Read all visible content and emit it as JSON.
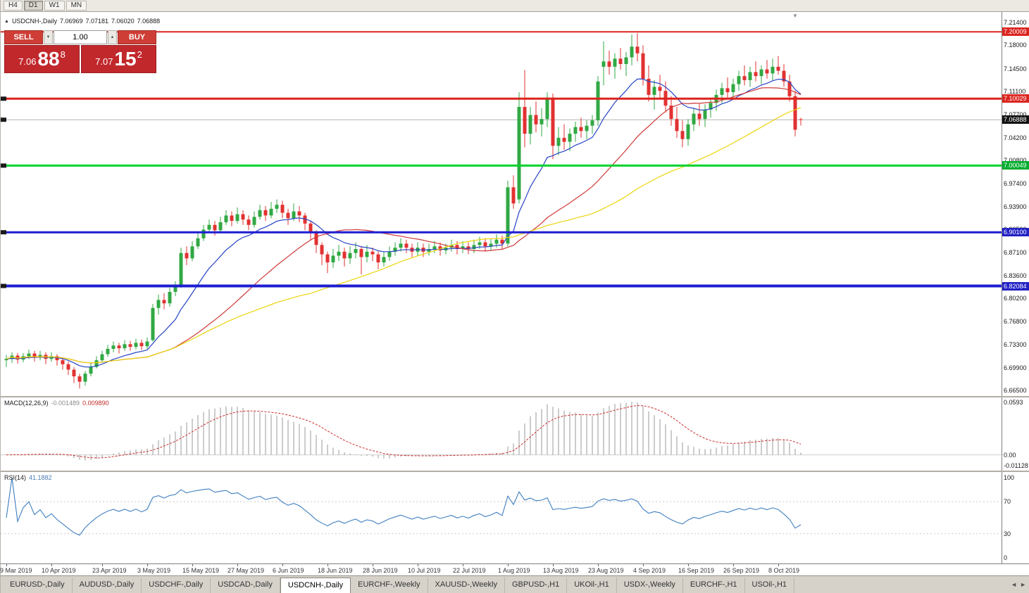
{
  "toolbar": {
    "timeframes": [
      "H4",
      "D1",
      "W1",
      "MN"
    ],
    "active": "D1"
  },
  "title": {
    "symbol": "USDCNH-,Daily",
    "open": "7.06969",
    "high": "7.07181",
    "low": "7.06020",
    "close": "7.06888"
  },
  "icons": {
    "panel_toggle": "▲",
    "shift_marker": "▼",
    "spin_down": "▼",
    "spin_up": "▲",
    "tab_left": "◄",
    "tab_right": "►"
  },
  "one_click": {
    "sell_label": "SELL",
    "buy_label": "BUY",
    "volume": "1.00",
    "bid": {
      "prefix": "7.06",
      "big": "88",
      "sup": "8"
    },
    "ask": {
      "prefix": "7.07",
      "big": "15",
      "sup": "2"
    }
  },
  "price_scale": {
    "ticks": [
      {
        "label": "7.21400",
        "value": 7.214
      },
      {
        "label": "7.18000",
        "value": 7.18
      },
      {
        "label": "7.14500",
        "value": 7.145
      },
      {
        "label": "7.11100",
        "value": 7.111
      },
      {
        "label": "7.07700",
        "value": 7.077
      },
      {
        "label": "7.04200",
        "value": 7.042
      },
      {
        "label": "7.00800",
        "value": 7.008
      },
      {
        "label": "6.97400",
        "value": 6.974
      },
      {
        "label": "6.93900",
        "value": 6.939
      },
      {
        "label": "6.90500",
        "value": 6.905
      },
      {
        "label": "6.87100",
        "value": 6.871
      },
      {
        "label": "6.83600",
        "value": 6.836
      },
      {
        "label": "6.80200",
        "value": 6.802
      },
      {
        "label": "6.76800",
        "value": 6.768
      },
      {
        "label": "6.73300",
        "value": 6.733
      },
      {
        "label": "6.69900",
        "value": 6.699
      },
      {
        "label": "6.66500",
        "value": 6.665
      }
    ],
    "badges": [
      {
        "label": "7.20009",
        "value": 7.20009,
        "bg": "#dc241e"
      },
      {
        "label": "7.10029",
        "value": 7.10029,
        "bg": "#dc241e"
      },
      {
        "label": "7.06888",
        "value": 7.06888,
        "bg": "#111111"
      },
      {
        "label": "7.00049",
        "value": 7.00049,
        "bg": "#00ad2e"
      },
      {
        "label": "6.90100",
        "value": 6.901,
        "bg": "#2121c4"
      },
      {
        "label": "6.82084",
        "value": 6.82084,
        "bg": "#2121c4"
      }
    ]
  },
  "time_axis": {
    "labels": [
      {
        "index": 0,
        "text": "29 Mar 2019"
      },
      {
        "index": 8,
        "text": "10 Apr 2019"
      },
      {
        "index": 17,
        "text": "23 Apr 2019"
      },
      {
        "index": 25,
        "text": "3 May 2019"
      },
      {
        "index": 33,
        "text": "15 May 2019"
      },
      {
        "index": 41,
        "text": "27 May 2019"
      },
      {
        "index": 49,
        "text": "6 Jun 2019"
      },
      {
        "index": 57,
        "text": "18 Jun 2019"
      },
      {
        "index": 65,
        "text": "28 Jun 2019"
      },
      {
        "index": 73,
        "text": "10 Jul 2019"
      },
      {
        "index": 81,
        "text": "22 Jul 2019"
      },
      {
        "index": 89,
        "text": "1 Aug 2019"
      },
      {
        "index": 97,
        "text": "13 Aug 2019"
      },
      {
        "index": 105,
        "text": "23 Aug 2019"
      },
      {
        "index": 113,
        "text": "4 Sep 2019"
      },
      {
        "index": 121,
        "text": "16 Sep 2019"
      },
      {
        "index": 129,
        "text": "26 Sep 2019"
      },
      {
        "index": 137,
        "text": "8 Oct 2019"
      }
    ]
  },
  "tabs": [
    {
      "label": "EURUSD-,Daily"
    },
    {
      "label": "AUDUSD-,Daily"
    },
    {
      "label": "USDCHF-,Daily"
    },
    {
      "label": "USDCAD-,Daily"
    },
    {
      "label": "USDCNH-,Daily",
      "active": true
    },
    {
      "label": "EURCHF-,Weekly"
    },
    {
      "label": "XAUUSD-,Weekly"
    },
    {
      "label": "GBPUSD-,H1"
    },
    {
      "label": "UKOil-,H1"
    },
    {
      "label": "USDX-,Weekly"
    },
    {
      "label": "EURCHF-,H1"
    },
    {
      "label": "USOil-,H1"
    }
  ],
  "chart_data": {
    "type": "candlestick",
    "symbol": "USDCNH",
    "timeframe": "Daily",
    "ylim": [
      6.665,
      7.214
    ],
    "up_color": "#31a843",
    "down_color": "#e23131",
    "candles": [
      [
        6.71,
        6.718,
        6.7,
        6.712
      ],
      [
        6.712,
        6.722,
        6.706,
        6.717
      ],
      [
        6.717,
        6.721,
        6.705,
        6.711
      ],
      [
        6.711,
        6.721,
        6.707,
        6.716
      ],
      [
        6.716,
        6.726,
        6.712,
        6.72
      ],
      [
        6.72,
        6.724,
        6.708,
        6.714
      ],
      [
        6.714,
        6.724,
        6.71,
        6.718
      ],
      [
        6.718,
        6.722,
        6.704,
        6.712
      ],
      [
        6.712,
        6.722,
        6.708,
        6.716
      ],
      [
        6.716,
        6.719,
        6.702,
        6.71
      ],
      [
        6.71,
        6.714,
        6.696,
        6.704
      ],
      [
        6.704,
        6.708,
        6.688,
        6.696
      ],
      [
        6.696,
        6.7,
        6.676,
        6.686
      ],
      [
        6.686,
        6.69,
        6.668,
        6.678
      ],
      [
        6.678,
        6.694,
        6.672,
        6.69
      ],
      [
        6.69,
        6.706,
        6.686,
        6.7
      ],
      [
        6.7,
        6.716,
        6.698,
        6.71
      ],
      [
        6.71,
        6.724,
        6.706,
        6.719
      ],
      [
        6.719,
        6.733,
        6.715,
        6.727
      ],
      [
        6.727,
        6.738,
        6.722,
        6.732
      ],
      [
        6.732,
        6.736,
        6.72,
        6.728
      ],
      [
        6.728,
        6.74,
        6.724,
        6.734
      ],
      [
        6.734,
        6.739,
        6.724,
        6.73
      ],
      [
        6.73,
        6.742,
        6.726,
        6.736
      ],
      [
        6.736,
        6.741,
        6.725,
        6.731
      ],
      [
        6.731,
        6.744,
        6.727,
        6.738
      ],
      [
        6.74,
        6.794,
        6.738,
        6.788
      ],
      [
        6.788,
        6.808,
        6.778,
        6.8
      ],
      [
        6.8,
        6.81,
        6.786,
        6.795
      ],
      [
        6.795,
        6.818,
        6.79,
        6.812
      ],
      [
        6.812,
        6.828,
        6.806,
        6.82
      ],
      [
        6.82,
        6.878,
        6.818,
        6.87
      ],
      [
        6.87,
        6.88,
        6.852,
        6.862
      ],
      [
        6.862,
        6.888,
        6.858,
        6.88
      ],
      [
        6.88,
        6.9,
        6.876,
        6.892
      ],
      [
        6.892,
        6.912,
        6.888,
        6.905
      ],
      [
        6.905,
        6.92,
        6.9,
        6.912
      ],
      [
        6.912,
        6.918,
        6.896,
        6.904
      ],
      [
        6.904,
        6.924,
        6.9,
        6.916
      ],
      [
        6.916,
        6.934,
        6.912,
        6.926
      ],
      [
        6.926,
        6.932,
        6.91,
        6.918
      ],
      [
        6.918,
        6.938,
        6.914,
        6.928
      ],
      [
        6.928,
        6.934,
        6.912,
        6.92
      ],
      [
        6.92,
        6.926,
        6.904,
        6.912
      ],
      [
        6.912,
        6.932,
        6.908,
        6.924
      ],
      [
        6.924,
        6.942,
        6.92,
        6.934
      ],
      [
        6.934,
        6.94,
        6.918,
        6.926
      ],
      [
        6.926,
        6.946,
        6.922,
        6.936
      ],
      [
        6.936,
        6.95,
        6.93,
        6.942
      ],
      [
        6.942,
        6.948,
        6.922,
        6.93
      ],
      [
        6.93,
        6.936,
        6.912,
        6.922
      ],
      [
        6.922,
        6.944,
        6.918,
        6.932
      ],
      [
        6.932,
        6.94,
        6.916,
        6.926
      ],
      [
        6.926,
        6.93,
        6.904,
        6.914
      ],
      [
        6.914,
        6.918,
        6.89,
        6.9
      ],
      [
        6.9,
        6.904,
        6.87,
        6.882
      ],
      [
        6.882,
        6.886,
        6.852,
        6.868
      ],
      [
        6.868,
        6.872,
        6.84,
        6.856
      ],
      [
        6.856,
        6.876,
        6.848,
        6.866
      ],
      [
        6.866,
        6.882,
        6.858,
        6.872
      ],
      [
        6.872,
        6.878,
        6.85,
        6.862
      ],
      [
        6.862,
        6.88,
        6.854,
        6.87
      ],
      [
        6.87,
        6.886,
        6.862,
        6.876
      ],
      [
        6.876,
        6.88,
        6.838,
        6.864
      ],
      [
        6.864,
        6.882,
        6.856,
        6.872
      ],
      [
        6.872,
        6.878,
        6.858,
        6.868
      ],
      [
        6.868,
        6.872,
        6.846,
        6.856
      ],
      [
        6.856,
        6.872,
        6.85,
        6.864
      ],
      [
        6.864,
        6.88,
        6.858,
        6.872
      ],
      [
        6.872,
        6.886,
        6.866,
        6.878
      ],
      [
        6.878,
        6.892,
        6.872,
        6.884
      ],
      [
        6.884,
        6.89,
        6.87,
        6.878
      ],
      [
        6.878,
        6.884,
        6.864,
        6.872
      ],
      [
        6.872,
        6.886,
        6.866,
        6.878
      ],
      [
        6.878,
        6.884,
        6.864,
        6.872
      ],
      [
        6.872,
        6.884,
        6.866,
        6.876
      ],
      [
        6.876,
        6.888,
        6.87,
        6.88
      ],
      [
        6.88,
        6.886,
        6.866,
        6.874
      ],
      [
        6.874,
        6.884,
        6.868,
        6.878
      ],
      [
        6.878,
        6.89,
        6.872,
        6.882
      ],
      [
        6.882,
        6.888,
        6.868,
        6.876
      ],
      [
        6.876,
        6.888,
        6.87,
        6.88
      ],
      [
        6.88,
        6.886,
        6.868,
        6.876
      ],
      [
        6.876,
        6.89,
        6.87,
        6.882
      ],
      [
        6.882,
        6.894,
        6.876,
        6.886
      ],
      [
        6.886,
        6.892,
        6.872,
        6.88
      ],
      [
        6.88,
        6.892,
        6.874,
        6.884
      ],
      [
        6.884,
        6.898,
        6.878,
        6.89
      ],
      [
        6.89,
        6.896,
        6.876,
        6.884
      ],
      [
        6.884,
        6.978,
        6.88,
        6.968
      ],
      [
        6.968,
        6.986,
        6.936,
        6.944
      ],
      [
        6.95,
        7.11,
        6.944,
        7.088
      ],
      [
        7.088,
        7.143,
        7.028,
        7.048
      ],
      [
        7.048,
        7.088,
        7.032,
        7.076
      ],
      [
        7.076,
        7.096,
        7.05,
        7.062
      ],
      [
        7.062,
        7.086,
        7.044,
        7.07
      ],
      [
        7.07,
        7.11,
        7.058,
        7.102
      ],
      [
        7.102,
        7.108,
        7.01,
        7.03
      ],
      [
        7.03,
        7.058,
        7.016,
        7.042
      ],
      [
        7.042,
        7.062,
        7.024,
        7.036
      ],
      [
        7.036,
        7.056,
        7.022,
        7.048
      ],
      [
        7.048,
        7.066,
        7.036,
        7.058
      ],
      [
        7.058,
        7.072,
        7.042,
        7.052
      ],
      [
        7.052,
        7.068,
        7.04,
        7.06
      ],
      [
        7.06,
        7.076,
        7.048,
        7.068
      ],
      [
        7.068,
        7.134,
        7.06,
        7.126
      ],
      [
        7.148,
        7.186,
        7.12,
        7.156
      ],
      [
        7.156,
        7.172,
        7.136,
        7.148
      ],
      [
        7.148,
        7.168,
        7.13,
        7.16
      ],
      [
        7.16,
        7.176,
        7.144,
        7.152
      ],
      [
        7.152,
        7.17,
        7.134,
        7.162
      ],
      [
        7.162,
        7.196,
        7.15,
        7.178
      ],
      [
        7.178,
        7.198,
        7.156,
        7.168
      ],
      [
        7.168,
        7.18,
        7.12,
        7.13
      ],
      [
        7.13,
        7.15,
        7.096,
        7.106
      ],
      [
        7.106,
        7.128,
        7.084,
        7.118
      ],
      [
        7.118,
        7.136,
        7.1,
        7.112
      ],
      [
        7.112,
        7.126,
        7.08,
        7.09
      ],
      [
        7.09,
        7.104,
        7.06,
        7.07
      ],
      [
        7.07,
        7.088,
        7.042,
        7.052
      ],
      [
        7.052,
        7.068,
        7.028,
        7.04
      ],
      [
        7.04,
        7.07,
        7.03,
        7.062
      ],
      [
        7.062,
        7.086,
        7.052,
        7.078
      ],
      [
        7.078,
        7.094,
        7.06,
        7.07
      ],
      [
        7.07,
        7.092,
        7.058,
        7.084
      ],
      [
        7.084,
        7.102,
        7.072,
        7.094
      ],
      [
        7.094,
        7.114,
        7.082,
        7.106
      ],
      [
        7.106,
        7.124,
        7.094,
        7.116
      ],
      [
        7.116,
        7.132,
        7.102,
        7.11
      ],
      [
        7.11,
        7.13,
        7.1,
        7.122
      ],
      [
        7.122,
        7.142,
        7.112,
        7.134
      ],
      [
        7.134,
        7.15,
        7.12,
        7.128
      ],
      [
        7.128,
        7.148,
        7.118,
        7.14
      ],
      [
        7.14,
        7.156,
        7.126,
        7.134
      ],
      [
        7.134,
        7.15,
        7.122,
        7.144
      ],
      [
        7.144,
        7.158,
        7.13,
        7.138
      ],
      [
        7.138,
        7.16,
        7.128,
        7.148
      ],
      [
        7.148,
        7.164,
        7.136,
        7.142
      ],
      [
        7.142,
        7.152,
        7.118,
        7.126
      ],
      [
        7.126,
        7.136,
        7.096,
        7.104
      ],
      [
        7.104,
        7.112,
        7.044,
        7.054
      ],
      [
        7.0697,
        7.0718,
        7.0602,
        7.0689
      ]
    ],
    "moving_averages": [
      {
        "type": "ema",
        "period": 12,
        "color": "#2744c4"
      },
      {
        "type": "sma",
        "period": 30,
        "color": "#cf3a3a"
      },
      {
        "type": "sma",
        "period": 55,
        "color": "#ecd40a"
      }
    ],
    "hlines": [
      {
        "price": 7.20009,
        "color": "#dc241e",
        "width": 2,
        "marker": false
      },
      {
        "price": 7.10029,
        "color": "#dc241e",
        "width": 3,
        "marker": true
      },
      {
        "price": 7.00049,
        "color": "#00d22d",
        "width": 3,
        "marker": true
      },
      {
        "price": 6.901,
        "color": "#1d1dd2",
        "width": 3,
        "marker": true
      },
      {
        "price": 6.82084,
        "color": "#1d1dd2",
        "width": 4,
        "marker": true
      }
    ],
    "bid_line": {
      "price": 7.06888,
      "color": "#b4b4b4",
      "marker": true
    },
    "macd": {
      "label_name": "MACD(12,26,9)",
      "value_main": "-0.001489",
      "value_signal": "0.009890",
      "axis_max": 0.0593,
      "axis_min": -0.01128,
      "axis_labels": [
        "0.0593",
        "0.00",
        "-0.01128"
      ],
      "histogram_color": "#9a9a9a",
      "signal_color": "#cc2a2a"
    },
    "rsi": {
      "label_name": "RSI(14)",
      "value": "41.1882",
      "levels": [
        100,
        70,
        30,
        0
      ],
      "line_color": "#3f7fbf"
    }
  }
}
